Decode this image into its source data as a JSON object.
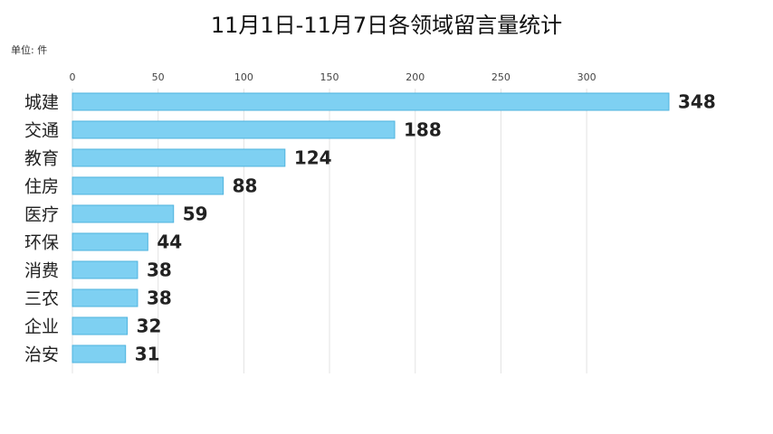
{
  "chart_data": {
    "type": "bar",
    "orientation": "horizontal",
    "title": "11月1日-11月7日各领域留言量统计",
    "unit_label": "单位: 件",
    "categories": [
      "城建",
      "交通",
      "教育",
      "住房",
      "医疗",
      "环保",
      "消费",
      "三农",
      "企业",
      "治安"
    ],
    "values": [
      348,
      188,
      124,
      88,
      59,
      44,
      38,
      38,
      32,
      31
    ],
    "xticks": [
      0,
      50,
      100,
      150,
      200,
      250,
      300
    ],
    "xlim": [
      0,
      348
    ],
    "grid": true,
    "colors": {
      "bar_fill": "#7ed0f2",
      "bar_stroke": "#4fb3de"
    }
  }
}
